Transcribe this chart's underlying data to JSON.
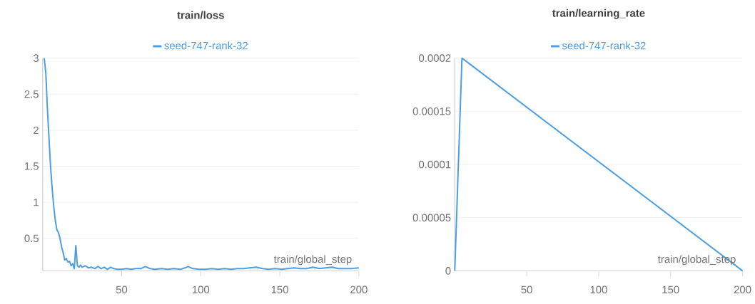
{
  "chart_data": [
    {
      "type": "line",
      "title": "train/loss",
      "xlabel": "train/global_step",
      "legend": "top",
      "grid": "y",
      "xlim": [
        0,
        200
      ],
      "ylim": [
        0.05,
        3
      ],
      "xticks": [
        50,
        100,
        150,
        200
      ],
      "yticks": [
        0.5,
        1,
        1.5,
        2,
        2.5,
        3
      ],
      "series": [
        {
          "name": "seed-747-rank-32",
          "color": "#4c9ee4",
          "x": [
            1,
            2,
            3,
            4,
            5,
            6,
            7,
            8,
            9,
            10,
            11,
            12,
            13,
            14,
            15,
            16,
            17,
            18,
            19,
            20,
            21,
            22,
            23,
            24,
            25,
            27,
            29,
            31,
            33,
            35,
            37,
            39,
            41,
            43,
            45,
            47,
            50,
            53,
            56,
            59,
            62,
            65,
            68,
            71,
            75,
            79,
            83,
            87,
            90,
            92,
            95,
            99,
            103,
            107,
            111,
            115,
            119,
            123,
            127,
            131,
            135,
            139,
            143,
            147,
            151,
            155,
            159,
            163,
            167,
            171,
            175,
            179,
            183,
            187,
            191,
            195,
            200
          ],
          "values": [
            3.0,
            2.8,
            2.3,
            1.9,
            1.5,
            1.2,
            0.95,
            0.75,
            0.62,
            0.58,
            0.5,
            0.38,
            0.3,
            0.2,
            0.22,
            0.17,
            0.18,
            0.12,
            0.15,
            0.08,
            0.4,
            0.12,
            0.1,
            0.13,
            0.1,
            0.12,
            0.09,
            0.1,
            0.08,
            0.11,
            0.08,
            0.1,
            0.07,
            0.1,
            0.08,
            0.07,
            0.07,
            0.08,
            0.07,
            0.08,
            0.08,
            0.11,
            0.08,
            0.07,
            0.08,
            0.07,
            0.08,
            0.07,
            0.09,
            0.11,
            0.08,
            0.07,
            0.07,
            0.08,
            0.07,
            0.08,
            0.07,
            0.08,
            0.08,
            0.09,
            0.1,
            0.08,
            0.07,
            0.08,
            0.07,
            0.08,
            0.09,
            0.08,
            0.08,
            0.1,
            0.08,
            0.09,
            0.1,
            0.08,
            0.08,
            0.08,
            0.09
          ]
        }
      ]
    },
    {
      "type": "line",
      "title": "train/learning_rate",
      "xlabel": "train/global_step",
      "legend": "top",
      "grid": "y",
      "xlim": [
        0,
        200
      ],
      "ylim": [
        0,
        0.0002
      ],
      "xticks": [
        50,
        100,
        150,
        200
      ],
      "yticks": [
        {
          "value": 0,
          "label": "0"
        },
        {
          "value": 5e-05,
          "label": "0.00005"
        },
        {
          "value": 0.0001,
          "label": "0.0001"
        },
        {
          "value": 0.00015,
          "label": "0.00015"
        },
        {
          "value": 0.0002,
          "label": "0.0002"
        }
      ],
      "series": [
        {
          "name": "seed-747-rank-32",
          "color": "#4c9ee4",
          "x": [
            0,
            5,
            200
          ],
          "values": [
            0,
            0.0002,
            0
          ]
        }
      ]
    }
  ]
}
